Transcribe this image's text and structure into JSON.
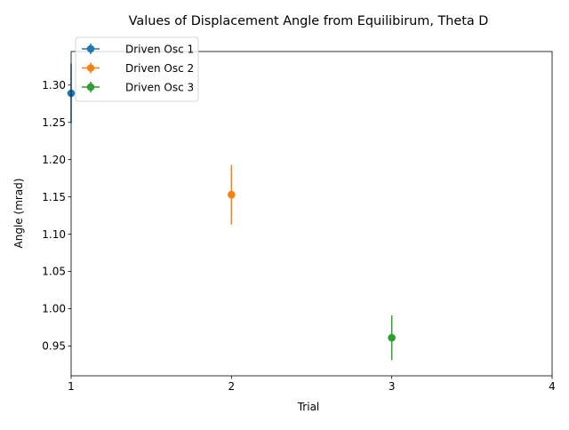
{
  "chart_data": {
    "type": "scatter",
    "title": "Values of Displacement Angle from Equilibirum, Theta D",
    "xlabel": "Trial",
    "ylabel": "Angle (mrad)",
    "xlim": [
      1,
      4
    ],
    "ylim": [
      0.91,
      1.345
    ],
    "xticks": [
      "1",
      "2",
      "3",
      "4"
    ],
    "xtick_values": [
      1,
      2,
      3,
      4
    ],
    "yticks": [
      "0.95",
      "1.00",
      "1.05",
      "1.10",
      "1.15",
      "1.20",
      "1.25",
      "1.30"
    ],
    "ytick_values": [
      0.95,
      1.0,
      1.05,
      1.1,
      1.15,
      1.2,
      1.25,
      1.3
    ],
    "grid": false,
    "legend_position": "top-left",
    "error_bars": true,
    "series": [
      {
        "name": "Driven Osc 1",
        "color": "#1f77b4",
        "x": [
          1
        ],
        "y": [
          1.289
        ],
        "yerr": [
          0.04
        ]
      },
      {
        "name": "Driven Osc 2",
        "color": "#ff7f0e",
        "x": [
          2
        ],
        "y": [
          1.153
        ],
        "yerr": [
          0.04
        ]
      },
      {
        "name": "Driven Osc 3",
        "color": "#2ca02c",
        "x": [
          3
        ],
        "y": [
          0.961
        ],
        "yerr": [
          0.03
        ]
      }
    ]
  }
}
